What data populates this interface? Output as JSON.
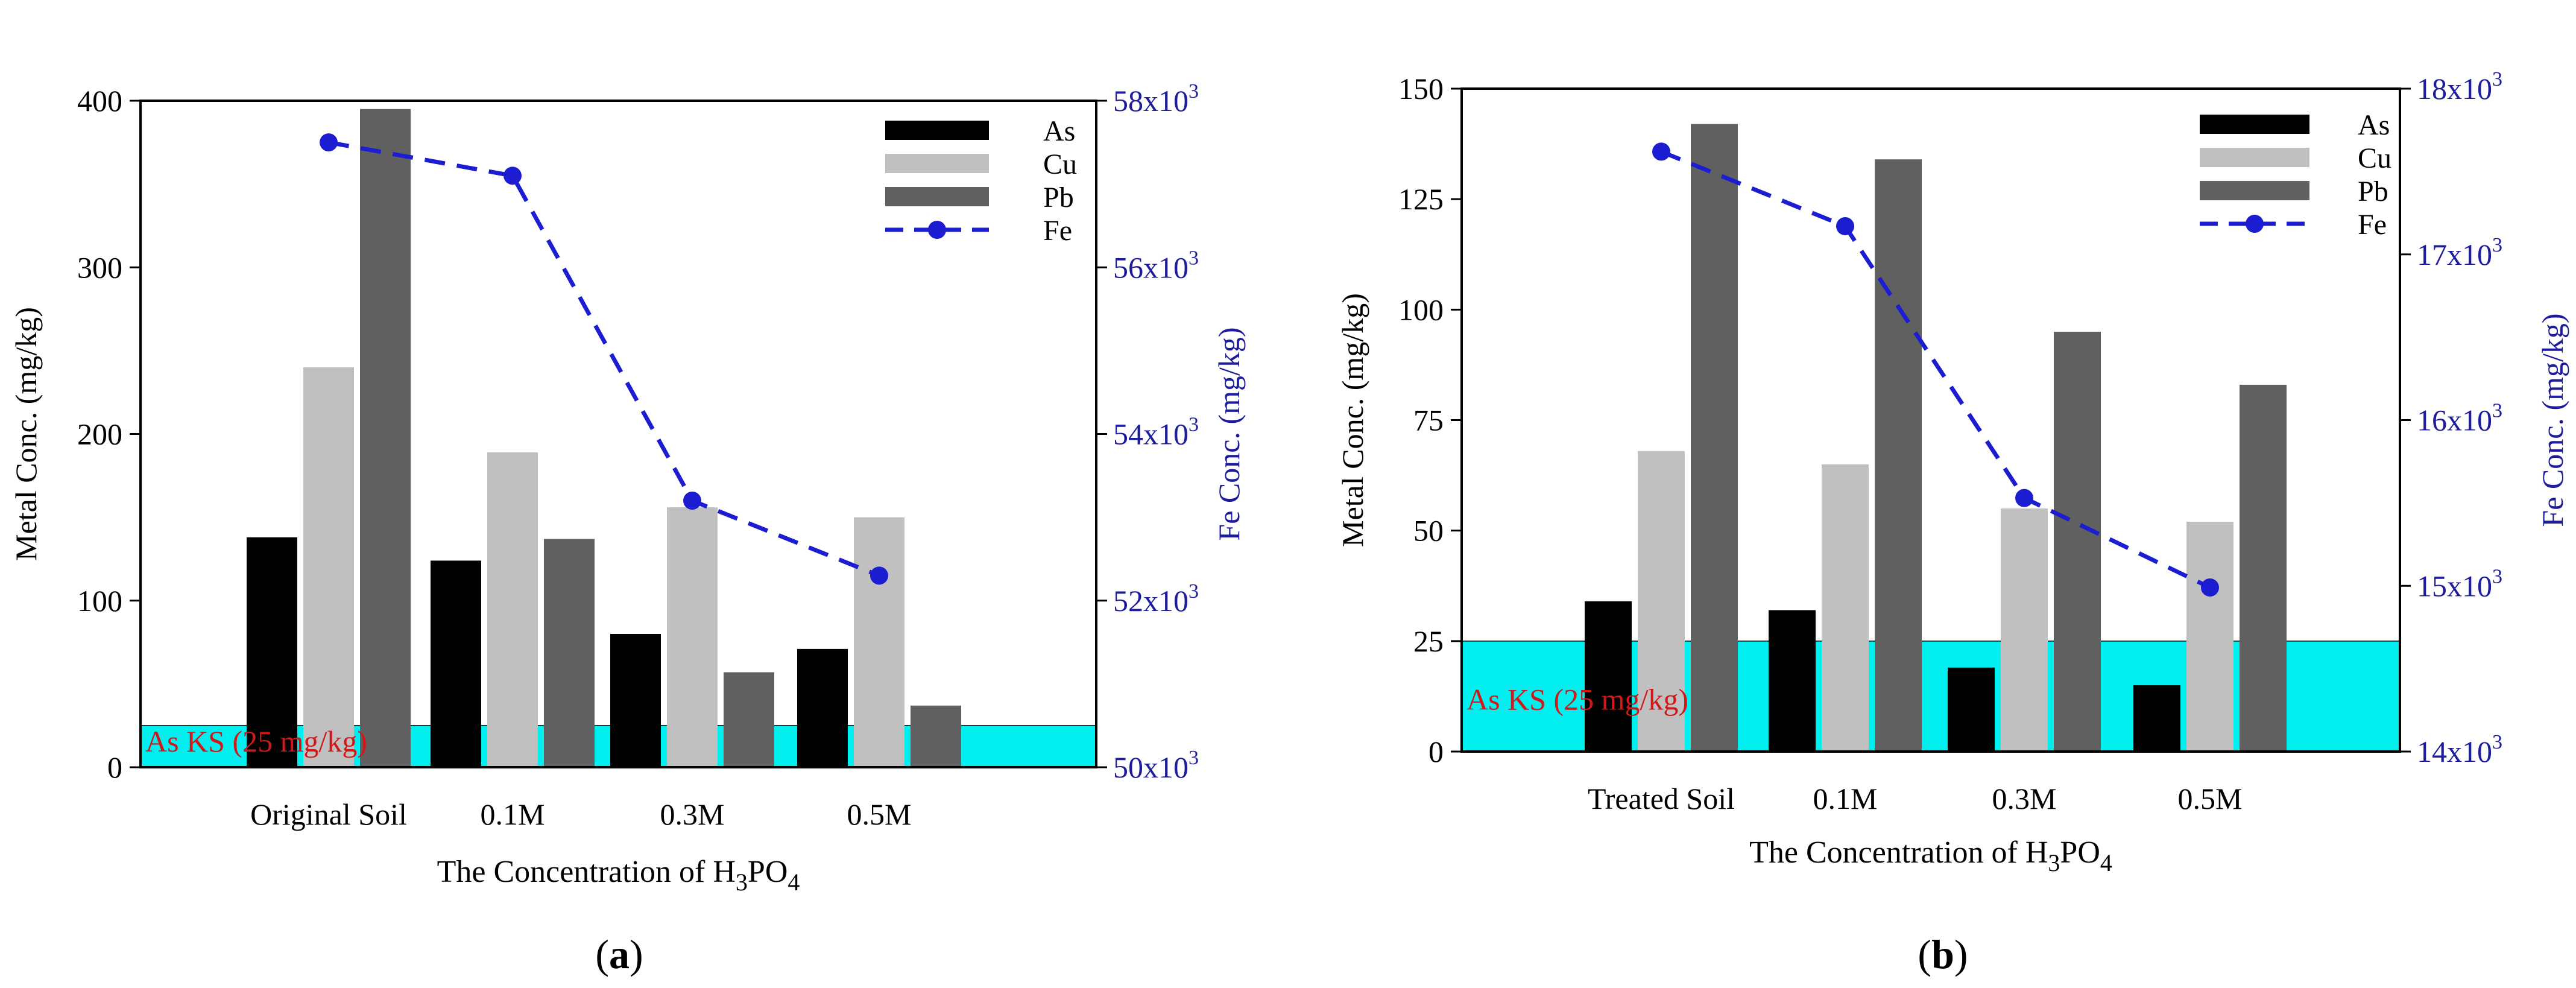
{
  "chart_data": [
    {
      "type": "bar",
      "panel_label": "a",
      "categories": [
        "Original Soil",
        "0.1M",
        "0.3M",
        "0.5M"
      ],
      "series": [
        {
          "name": "As",
          "values": [
            138,
            124,
            80,
            71
          ],
          "color": "#000000"
        },
        {
          "name": "Cu",
          "values": [
            240,
            189,
            156,
            150
          ],
          "color": "#c0c0c0"
        },
        {
          "name": "Pb",
          "values": [
            395,
            137,
            57,
            37
          ],
          "color": "#606060"
        }
      ],
      "line_series": {
        "name": "Fe",
        "values": [
          57500,
          57100,
          53200,
          52300
        ],
        "axis": "right",
        "color": "#1c1cd0",
        "style": "dashed",
        "marker": "circle"
      },
      "xlabel": "The Concentration of H",
      "xlabel_sub": "3",
      "xlabel_mid": "PO",
      "xlabel_end": "4",
      "ylabel": "Metal Conc. (mg/kg)",
      "y2label": "Fe Conc. (mg/kg)",
      "ylim": [
        0,
        400
      ],
      "yticks": [
        0,
        100,
        200,
        300,
        400
      ],
      "y2lim": [
        50000,
        58000
      ],
      "y2ticks": [
        50,
        52,
        54,
        56,
        58
      ],
      "y2tick_suffix": "x10",
      "y2tick_exp": "3",
      "threshold": {
        "label": "As KS (25 mg/kg)",
        "label_a": "As KS (",
        "label_b": "25 mg/kg)",
        "value": 25,
        "fill": "#00f0f0"
      },
      "legend": "top-right"
    },
    {
      "type": "bar",
      "panel_label": "b",
      "categories": [
        "Treated Soil",
        "0.1M",
        "0.3M",
        "0.5M"
      ],
      "series": [
        {
          "name": "As",
          "values": [
            34,
            32,
            19,
            15
          ],
          "color": "#000000"
        },
        {
          "name": "Cu",
          "values": [
            68,
            65,
            55,
            52
          ],
          "color": "#c0c0c0"
        },
        {
          "name": "Pb",
          "values": [
            142,
            134,
            95,
            83
          ],
          "color": "#606060"
        }
      ],
      "line_series": {
        "name": "Fe",
        "values": [
          17620,
          17170,
          15530,
          14990
        ],
        "axis": "right",
        "color": "#1c1cd0",
        "style": "dashed",
        "marker": "circle"
      },
      "xlabel": "The Concentration of H",
      "xlabel_sub": "3",
      "xlabel_mid": "PO",
      "xlabel_end": "4",
      "ylabel": "Metal Conc. (mg/kg)",
      "y2label": "Fe Conc. (mg/kg)",
      "ylim": [
        0,
        150
      ],
      "yticks": [
        0,
        25,
        50,
        75,
        100,
        125,
        150
      ],
      "y2lim": [
        14000,
        18000
      ],
      "y2ticks": [
        14,
        15,
        16,
        17,
        18
      ],
      "y2tick_suffix": "x10",
      "y2tick_exp": "3",
      "threshold": {
        "label": "As KS (25 mg/kg)",
        "label_a": "As KS (",
        "label_b": "25 mg/kg)",
        "value": 25,
        "fill": "#00f0f0"
      },
      "legend": "top-right"
    }
  ]
}
